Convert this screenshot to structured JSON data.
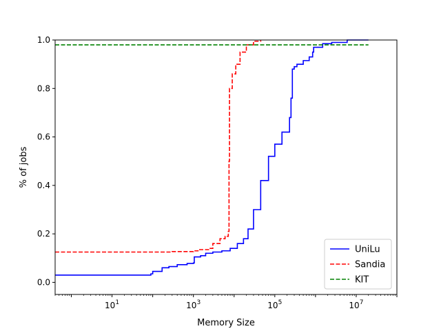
{
  "chart_data": {
    "type": "line",
    "title": "",
    "xlabel": "Memory Size",
    "ylabel": "% of jobs",
    "xscale": "log",
    "xlim": [
      0.4,
      100000000
    ],
    "ylim": [
      -0.05,
      1.0
    ],
    "xticks": [
      {
        "value": 10,
        "base": "10",
        "exp": "1"
      },
      {
        "value": 1000,
        "base": "10",
        "exp": "3"
      },
      {
        "value": 100000,
        "base": "10",
        "exp": "5"
      },
      {
        "value": 10000000,
        "base": "10",
        "exp": "7"
      }
    ],
    "yticks": [
      "0.0",
      "0.2",
      "0.4",
      "0.6",
      "0.8",
      "1.0"
    ],
    "legend_position": "lower-right",
    "series": [
      {
        "name": "UniLu",
        "color": "#0000ff",
        "dash": "solid",
        "step": true,
        "points": [
          [
            0.4,
            0.03
          ],
          [
            10,
            0.03
          ],
          [
            90,
            0.035
          ],
          [
            100,
            0.045
          ],
          [
            160,
            0.045
          ],
          [
            170,
            0.06
          ],
          [
            250,
            0.065
          ],
          [
            400,
            0.073
          ],
          [
            700,
            0.078
          ],
          [
            1000,
            0.08
          ],
          [
            1050,
            0.105
          ],
          [
            1500,
            0.11
          ],
          [
            2000,
            0.12
          ],
          [
            3000,
            0.125
          ],
          [
            5000,
            0.13
          ],
          [
            8000,
            0.14
          ],
          [
            12000,
            0.16
          ],
          [
            17000,
            0.18
          ],
          [
            22000,
            0.22
          ],
          [
            30000,
            0.3
          ],
          [
            45000,
            0.42
          ],
          [
            70000,
            0.52
          ],
          [
            100000,
            0.57
          ],
          [
            150000,
            0.62
          ],
          [
            230000,
            0.68
          ],
          [
            250000,
            0.76
          ],
          [
            270000,
            0.88
          ],
          [
            300000,
            0.89
          ],
          [
            350000,
            0.9
          ],
          [
            500000,
            0.915
          ],
          [
            700000,
            0.93
          ],
          [
            850000,
            0.95
          ],
          [
            900000,
            0.97
          ],
          [
            1500000,
            0.985
          ],
          [
            2500000,
            0.99
          ],
          [
            6000000,
            1.0
          ],
          [
            20000000,
            1.0
          ]
        ]
      },
      {
        "name": "Sandia",
        "color": "#ff0000",
        "dash": "dashed",
        "step": true,
        "points": [
          [
            0.4,
            0.125
          ],
          [
            150,
            0.125
          ],
          [
            300,
            0.127
          ],
          [
            1000,
            0.13
          ],
          [
            1300,
            0.135
          ],
          [
            2500,
            0.14
          ],
          [
            3000,
            0.16
          ],
          [
            4500,
            0.18
          ],
          [
            6000,
            0.19
          ],
          [
            7200,
            0.21
          ],
          [
            7500,
            0.5
          ],
          [
            7700,
            0.8
          ],
          [
            9000,
            0.86
          ],
          [
            11000,
            0.9
          ],
          [
            14000,
            0.95
          ],
          [
            20000,
            0.98
          ],
          [
            30000,
            0.995
          ],
          [
            45000,
            1.0
          ]
        ]
      },
      {
        "name": "KIT",
        "color": "#008000",
        "dash": "dashed",
        "step": false,
        "points": [
          [
            0.4,
            0.98
          ],
          [
            20000000,
            0.98
          ]
        ]
      }
    ]
  }
}
